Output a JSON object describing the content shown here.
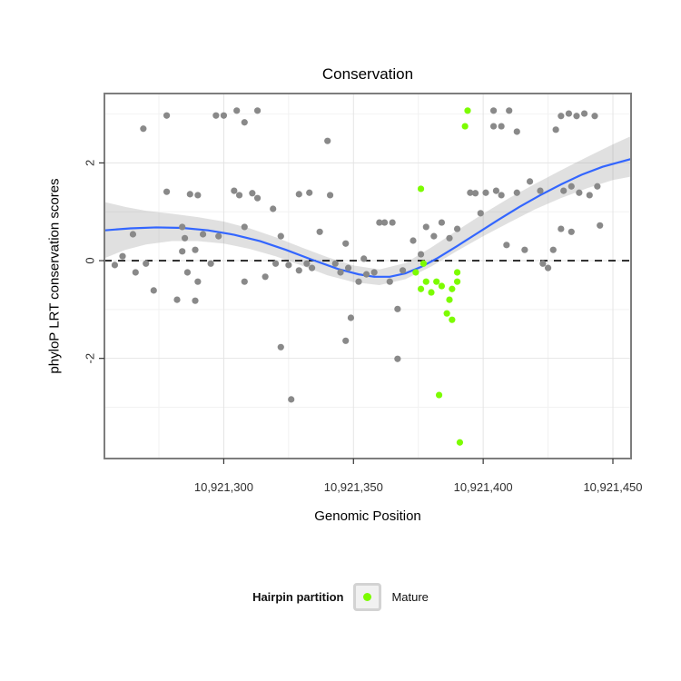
{
  "legend": {
    "title": "Hairpin partition",
    "items": [
      {
        "label": "Mature",
        "color": "#7cfc00"
      }
    ]
  },
  "chart_data": {
    "type": "scatter",
    "title": "Conservation",
    "xlabel": "Genomic Position",
    "ylabel": "phyloP LRT conservation scores",
    "xlim": [
      10921254,
      10921457
    ],
    "ylim": [
      -4.05,
      3.42
    ],
    "x_ticks": [
      10921300,
      10921350,
      10921400,
      10921450
    ],
    "x_tick_labels": [
      "10,921,300",
      "10,921,350",
      "10,921,400",
      "10,921,450"
    ],
    "x_minor_ticks": [
      10921275,
      10921325,
      10921375,
      10921425
    ],
    "y_ticks": [
      -2,
      0,
      2
    ],
    "y_tick_labels": [
      "-2",
      "0",
      "2"
    ],
    "y_minor_ticks": [
      -3,
      -1,
      1,
      3
    ],
    "hline": 0,
    "grid": "on",
    "legend_position": "bottom",
    "colors": {
      "point_gray": "#898989",
      "point_mature": "#7cfc00",
      "smooth_line": "#3366ff",
      "band": "#9e9e9e",
      "zero_line": "#000000",
      "panel_border": "#7d7d7d",
      "grid_major": "#e4e4e4",
      "grid_minor": "#f2f2f2",
      "tick": "#333333"
    },
    "points_gray": {
      "data": [
        [
          10921269,
          2.7
        ],
        [
          10921278,
          2.97
        ],
        [
          10921297,
          2.97
        ],
        [
          10921300,
          2.97
        ],
        [
          10921305,
          3.07
        ],
        [
          10921308,
          2.83
        ],
        [
          10921313,
          3.07
        ],
        [
          10921340,
          2.45
        ],
        [
          10921265,
          0.54
        ],
        [
          10921261,
          0.09
        ],
        [
          10921258,
          -0.09
        ],
        [
          10921270,
          -0.06
        ],
        [
          10921273,
          -0.61
        ],
        [
          10921266,
          -0.24
        ],
        [
          10921278,
          1.41
        ],
        [
          10921284,
          0.69
        ],
        [
          10921285,
          0.46
        ],
        [
          10921287,
          1.36
        ],
        [
          10921290,
          1.34
        ],
        [
          10921292,
          0.54
        ],
        [
          10921289,
          0.22
        ],
        [
          10921284,
          0.19
        ],
        [
          10921286,
          -0.24
        ],
        [
          10921290,
          -0.43
        ],
        [
          10921282,
          -0.8
        ],
        [
          10921289,
          -0.82
        ],
        [
          10921298,
          0.5
        ],
        [
          10921295,
          -0.06
        ],
        [
          10921304,
          1.43
        ],
        [
          10921306,
          1.34
        ],
        [
          10921308,
          0.69
        ],
        [
          10921311,
          1.38
        ],
        [
          10921313,
          1.28
        ],
        [
          10921308,
          -0.43
        ],
        [
          10921316,
          -0.33
        ],
        [
          10921319,
          1.06
        ],
        [
          10921322,
          0.5
        ],
        [
          10921320,
          -0.06
        ],
        [
          10921325,
          -0.09
        ],
        [
          10921329,
          1.36
        ],
        [
          10921333,
          1.39
        ],
        [
          10921332,
          -0.06
        ],
        [
          10921329,
          -0.2
        ],
        [
          10921334,
          -0.15
        ],
        [
          10921337,
          0.59
        ],
        [
          10921322,
          -1.77
        ],
        [
          10921326,
          -2.84
        ],
        [
          10921341,
          1.34
        ],
        [
          10921343,
          -0.06
        ],
        [
          10921345,
          -0.24
        ],
        [
          10921347,
          0.35
        ],
        [
          10921348,
          -0.15
        ],
        [
          10921352,
          -0.43
        ],
        [
          10921354,
          0.04
        ],
        [
          10921355,
          -0.28
        ],
        [
          10921349,
          -1.17
        ],
        [
          10921347,
          -1.64
        ],
        [
          10921358,
          -0.24
        ],
        [
          10921360,
          0.78
        ],
        [
          10921362,
          0.78
        ],
        [
          10921365,
          0.78
        ],
        [
          10921364,
          -0.43
        ],
        [
          10921367,
          -0.99
        ],
        [
          10921367,
          -2.01
        ],
        [
          10921369,
          -0.2
        ],
        [
          10921373,
          0.41
        ],
        [
          10921376,
          0.13
        ],
        [
          10921378,
          0.69
        ],
        [
          10921381,
          0.5
        ],
        [
          10921384,
          0.78
        ],
        [
          10921387,
          0.46
        ],
        [
          10921390,
          0.65
        ],
        [
          10921395,
          1.39
        ],
        [
          10921397,
          1.38
        ],
        [
          10921399,
          0.97
        ],
        [
          10921401,
          1.39
        ],
        [
          10921404,
          2.75
        ],
        [
          10921407,
          2.75
        ],
        [
          10921404,
          3.07
        ],
        [
          10921410,
          3.07
        ],
        [
          10921413,
          2.64
        ],
        [
          10921405,
          1.43
        ],
        [
          10921407,
          1.34
        ],
        [
          10921409,
          0.32
        ],
        [
          10921413,
          1.39
        ],
        [
          10921416,
          0.22
        ],
        [
          10921418,
          1.62
        ],
        [
          10921422,
          1.43
        ],
        [
          10921423,
          -0.06
        ],
        [
          10921425,
          -0.15
        ],
        [
          10921427,
          0.22
        ],
        [
          10921428,
          2.68
        ],
        [
          10921430,
          2.96
        ],
        [
          10921433,
          3.01
        ],
        [
          10921436,
          2.96
        ],
        [
          10921439,
          3.01
        ],
        [
          10921443,
          2.96
        ],
        [
          10921431,
          1.43
        ],
        [
          10921434,
          1.52
        ],
        [
          10921437,
          1.39
        ],
        [
          10921441,
          1.34
        ],
        [
          10921444,
          1.52
        ],
        [
          10921445,
          0.72
        ],
        [
          10921434,
          0.59
        ],
        [
          10921430,
          0.65
        ]
      ]
    },
    "points_mature": {
      "label": "Mature",
      "data": [
        [
          10921394,
          3.07
        ],
        [
          10921393,
          2.75
        ],
        [
          10921376,
          1.47
        ],
        [
          10921377,
          -0.06
        ],
        [
          10921374,
          -0.24
        ],
        [
          10921378,
          -0.43
        ],
        [
          10921376,
          -0.58
        ],
        [
          10921380,
          -0.65
        ],
        [
          10921382,
          -0.43
        ],
        [
          10921384,
          -0.52
        ],
        [
          10921387,
          -0.8
        ],
        [
          10921388,
          -0.58
        ],
        [
          10921390,
          -0.43
        ],
        [
          10921386,
          -1.08
        ],
        [
          10921388,
          -1.21
        ],
        [
          10921390,
          -0.24
        ],
        [
          10921383,
          -2.75
        ],
        [
          10921391,
          -3.72
        ]
      ]
    },
    "smooth": {
      "line": [
        [
          10921254,
          0.62
        ],
        [
          10921264,
          0.66
        ],
        [
          10921274,
          0.68
        ],
        [
          10921284,
          0.67
        ],
        [
          10921294,
          0.62
        ],
        [
          10921304,
          0.53
        ],
        [
          10921314,
          0.4
        ],
        [
          10921324,
          0.22
        ],
        [
          10921334,
          0.02
        ],
        [
          10921344,
          -0.17
        ],
        [
          10921352,
          -0.28
        ],
        [
          10921358,
          -0.33
        ],
        [
          10921364,
          -0.33
        ],
        [
          10921370,
          -0.26
        ],
        [
          10921376,
          -0.13
        ],
        [
          10921382,
          0.04
        ],
        [
          10921390,
          0.3
        ],
        [
          10921398,
          0.57
        ],
        [
          10921406,
          0.84
        ],
        [
          10921414,
          1.1
        ],
        [
          10921422,
          1.34
        ],
        [
          10921430,
          1.56
        ],
        [
          10921438,
          1.76
        ],
        [
          10921446,
          1.92
        ],
        [
          10921457,
          2.08
        ]
      ],
      "band": [
        [
          10921254,
          0.05,
          1.2
        ],
        [
          10921262,
          0.22,
          1.1
        ],
        [
          10921270,
          0.33,
          1.02
        ],
        [
          10921280,
          0.4,
          0.96
        ],
        [
          10921290,
          0.4,
          0.89
        ],
        [
          10921300,
          0.35,
          0.8
        ],
        [
          10921310,
          0.24,
          0.66
        ],
        [
          10921320,
          0.09,
          0.48
        ],
        [
          10921330,
          -0.1,
          0.27
        ],
        [
          10921340,
          -0.3,
          0.07
        ],
        [
          10921350,
          -0.44,
          -0.1
        ],
        [
          10921360,
          -0.5,
          -0.18
        ],
        [
          10921370,
          -0.38,
          -0.05
        ],
        [
          10921380,
          -0.12,
          0.27
        ],
        [
          10921390,
          0.2,
          0.62
        ],
        [
          10921400,
          0.5,
          0.96
        ],
        [
          10921410,
          0.78,
          1.28
        ],
        [
          10921420,
          1.05,
          1.57
        ],
        [
          10921430,
          1.28,
          1.85
        ],
        [
          10921440,
          1.48,
          2.12
        ],
        [
          10921450,
          1.65,
          2.38
        ],
        [
          10921457,
          1.72,
          2.55
        ]
      ],
      "band_opacity": 0.32
    }
  }
}
